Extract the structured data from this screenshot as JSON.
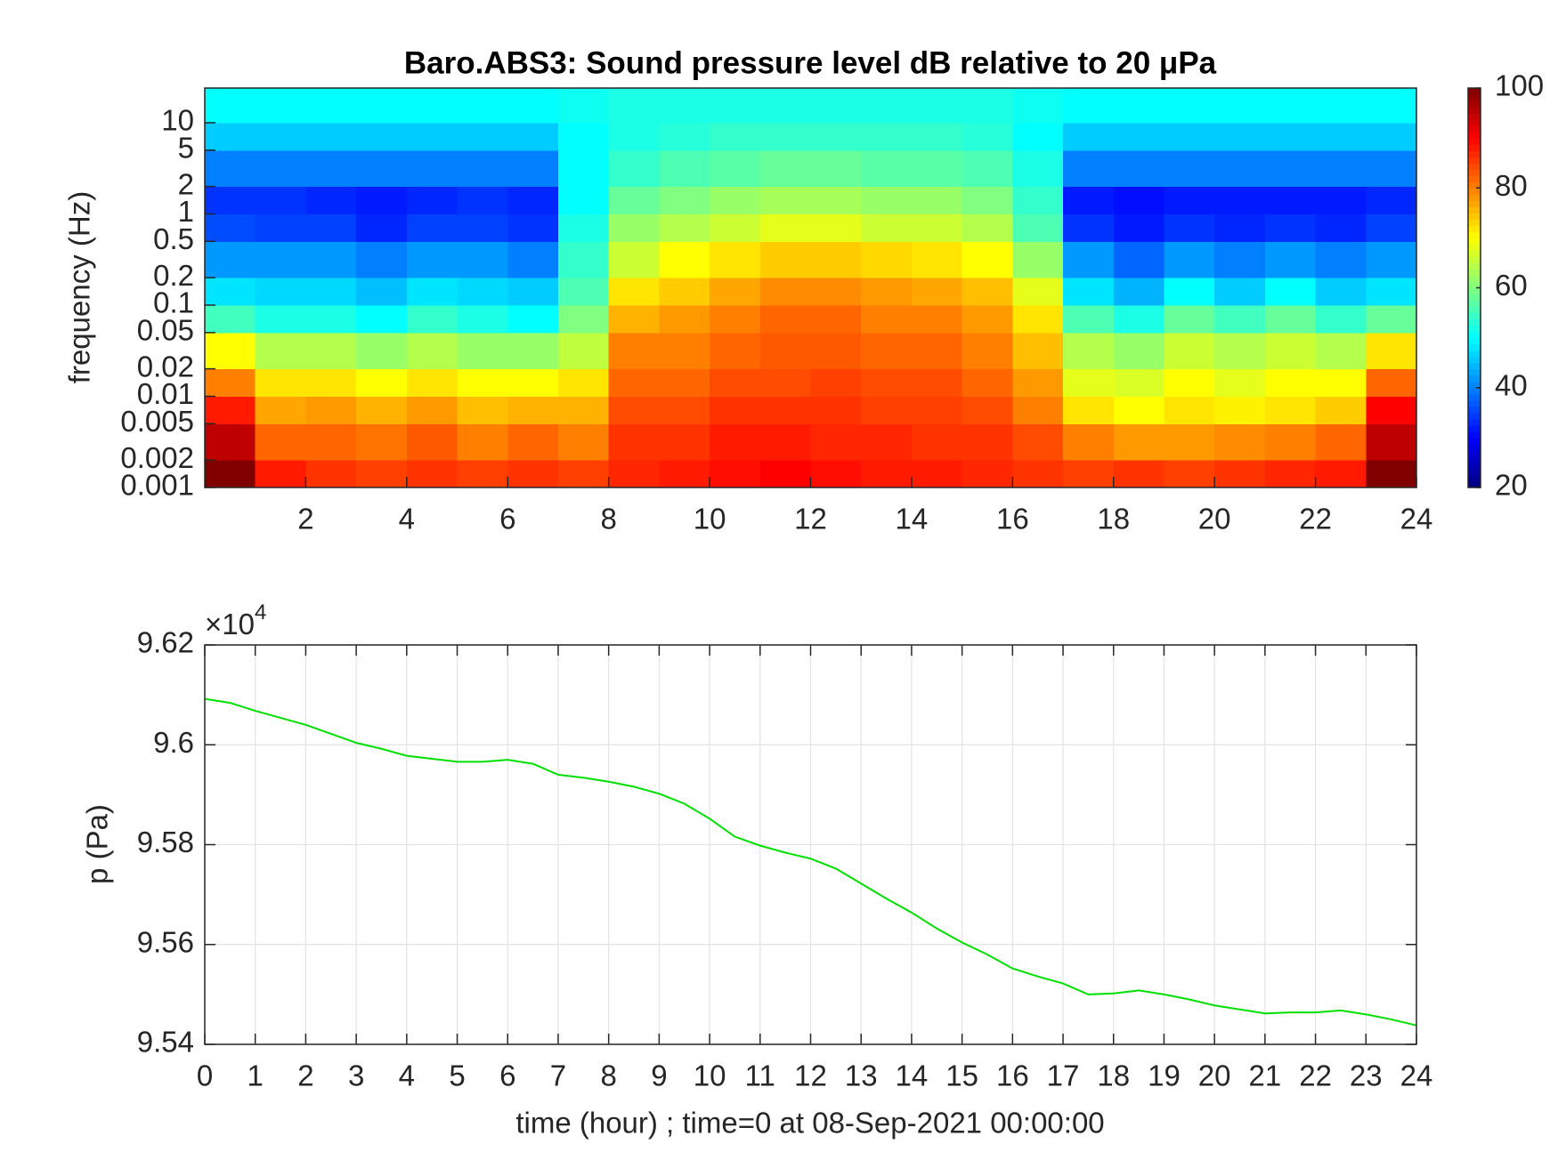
{
  "chart_data": [
    {
      "type": "heatmap",
      "title": "Baro.ABS3: Sound pressure level dB relative to 20 μPa",
      "y_label": "frequency (Hz)",
      "yscale": "log",
      "xlim": [
        0,
        24
      ],
      "xticks": [
        2,
        4,
        6,
        8,
        10,
        12,
        14,
        16,
        18,
        20,
        22,
        24
      ],
      "ylim": [
        0.001,
        24
      ],
      "yticks": [
        0.001,
        0.002,
        0.005,
        0.01,
        0.02,
        0.05,
        0.1,
        0.2,
        0.5,
        1,
        2,
        5,
        10
      ],
      "x_bins": [
        0,
        1,
        2,
        3,
        4,
        5,
        6,
        7,
        8,
        9,
        10,
        11,
        12,
        13,
        14,
        15,
        16,
        17,
        18,
        19,
        20,
        21,
        22,
        23,
        24
      ],
      "y_bins": [
        0.001,
        0.002,
        0.005,
        0.01,
        0.02,
        0.05,
        0.1,
        0.2,
        0.5,
        1,
        2,
        5,
        10,
        24
      ],
      "colormap": "jet",
      "colorbar": {
        "lim": [
          20,
          100
        ],
        "ticks": [
          20,
          40,
          60,
          80,
          100
        ]
      },
      "values": [
        [
          100,
          88,
          86,
          85,
          86,
          85,
          86,
          85,
          87,
          88,
          89,
          90,
          89,
          88,
          88,
          87,
          86,
          85,
          86,
          85,
          86,
          87,
          88,
          100
        ],
        [
          95,
          82,
          82,
          81,
          83,
          80,
          82,
          80,
          86,
          86,
          88,
          88,
          87,
          87,
          86,
          86,
          84,
          80,
          78,
          78,
          79,
          80,
          82,
          95
        ],
        [
          88,
          77,
          78,
          76,
          78,
          75,
          76,
          76,
          84,
          84,
          86,
          86,
          86,
          85,
          85,
          84,
          80,
          72,
          70,
          72,
          71,
          72,
          74,
          90
        ],
        [
          80,
          72,
          72,
          70,
          72,
          70,
          70,
          72,
          82,
          82,
          84,
          84,
          85,
          84,
          84,
          82,
          78,
          68,
          67,
          70,
          68,
          70,
          70,
          82
        ],
        [
          70,
          64,
          64,
          62,
          64,
          62,
          62,
          65,
          80,
          80,
          82,
          83,
          83,
          82,
          82,
          80,
          75,
          64,
          62,
          66,
          64,
          66,
          64,
          72
        ],
        [
          55,
          52,
          52,
          50,
          54,
          52,
          50,
          60,
          76,
          78,
          80,
          82,
          82,
          80,
          80,
          78,
          72,
          56,
          52,
          58,
          55,
          58,
          54,
          58
        ],
        [
          48,
          47,
          47,
          45,
          48,
          47,
          46,
          56,
          72,
          74,
          77,
          79,
          79,
          78,
          77,
          75,
          68,
          48,
          44,
          50,
          46,
          50,
          46,
          48
        ],
        [
          42,
          42,
          42,
          40,
          42,
          42,
          40,
          54,
          66,
          70,
          72,
          74,
          74,
          73,
          72,
          70,
          62,
          42,
          38,
          42,
          40,
          42,
          40,
          42
        ],
        [
          36,
          35,
          35,
          33,
          35,
          35,
          34,
          52,
          62,
          64,
          66,
          68,
          68,
          66,
          66,
          64,
          56,
          34,
          32,
          34,
          33,
          34,
          33,
          35
        ],
        [
          34,
          34,
          33,
          32,
          33,
          34,
          33,
          50,
          58,
          60,
          62,
          63,
          63,
          62,
          62,
          60,
          54,
          32,
          31,
          32,
          32,
          32,
          32,
          33
        ],
        [
          40,
          40,
          40,
          40,
          40,
          40,
          40,
          50,
          54,
          56,
          57,
          58,
          58,
          57,
          57,
          56,
          52,
          40,
          40,
          40,
          40,
          40,
          40,
          40
        ],
        [
          46,
          46,
          46,
          46,
          46,
          46,
          46,
          50,
          52,
          53,
          54,
          54,
          54,
          54,
          54,
          53,
          50,
          46,
          46,
          46,
          46,
          46,
          46,
          46
        ],
        [
          50,
          50,
          50,
          50,
          50,
          50,
          50,
          51,
          52,
          52,
          52,
          52,
          52,
          52,
          52,
          52,
          51,
          50,
          50,
          50,
          50,
          50,
          50,
          50
        ]
      ]
    },
    {
      "type": "line",
      "x_label": "time (hour) ; time=0 at 08-Sep-2021 00:00:00",
      "y_label": "p (Pa)",
      "y_multiplier": {
        "base": "×10",
        "exponent": "4"
      },
      "xlim": [
        0,
        24
      ],
      "xticks": [
        0,
        1,
        2,
        3,
        4,
        5,
        6,
        7,
        8,
        9,
        10,
        11,
        12,
        13,
        14,
        15,
        16,
        17,
        18,
        19,
        20,
        21,
        22,
        23,
        24
      ],
      "ylim": [
        95400,
        96200
      ],
      "yticks": [
        {
          "value": 95400,
          "label": "9.54"
        },
        {
          "value": 95600,
          "label": "9.56"
        },
        {
          "value": 95800,
          "label": "9.58"
        },
        {
          "value": 96000,
          "label": "9.6"
        },
        {
          "value": 96200,
          "label": "9.62"
        }
      ],
      "grid": true,
      "series": [
        {
          "color": "#00e000",
          "x": [
            0,
            0.5,
            1,
            1.5,
            2,
            2.5,
            3,
            3.5,
            4,
            4.5,
            5,
            5.5,
            6,
            6.5,
            7,
            7.5,
            8,
            8.5,
            9,
            9.5,
            10,
            10.5,
            11,
            11.5,
            12,
            12.5,
            13,
            13.5,
            14,
            14.5,
            15,
            15.5,
            16,
            16.5,
            17,
            17.5,
            18,
            18.5,
            19,
            19.5,
            20,
            20.5,
            21,
            21.5,
            22,
            22.5,
            23,
            23.5,
            24
          ],
          "values": [
            96092,
            96084,
            96068,
            96054,
            96040,
            96022,
            96004,
            95992,
            95978,
            95972,
            95966,
            95966,
            95970,
            95962,
            95940,
            95934,
            95926,
            95916,
            95902,
            95882,
            95852,
            95816,
            95798,
            95784,
            95772,
            95752,
            95722,
            95692,
            95664,
            95632,
            95604,
            95580,
            95552,
            95536,
            95522,
            95500,
            95502,
            95508,
            95500,
            95490,
            95478,
            95470,
            95462,
            95464,
            95464,
            95468,
            95460,
            95450,
            95438
          ]
        }
      ]
    }
  ]
}
